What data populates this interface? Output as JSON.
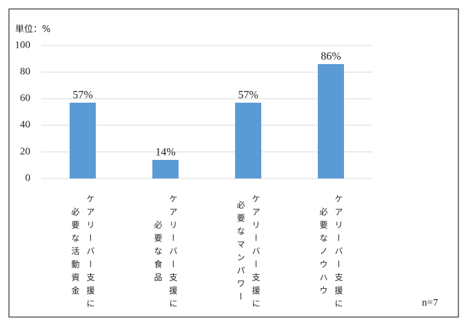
{
  "chart_data": {
    "type": "bar",
    "title": "単位：%",
    "categories": [
      "ケアリーバー支援に必要な活動資金",
      "ケアリーバー支援に必要な食品",
      "ケアリーバー支援に必要なマンパワー",
      "ケアリーバー支援に必要なノウハウ"
    ],
    "values": [
      57,
      14,
      57,
      86
    ],
    "value_labels": [
      "57%",
      "14%",
      "57%",
      "86%"
    ],
    "color": "#5b9bd5",
    "ylim": [
      0,
      100
    ],
    "yticks": [
      0,
      20,
      40,
      60,
      80,
      100
    ],
    "grid": true,
    "annotation": "n=7"
  }
}
